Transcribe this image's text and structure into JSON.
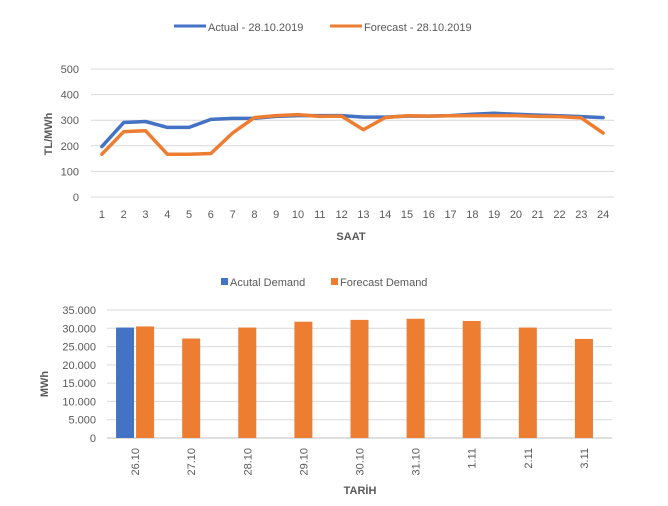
{
  "chart_data": [
    {
      "type": "line",
      "title": "",
      "xlabel": "SAAT",
      "ylabel": "TL/MWh",
      "ylim": [
        0,
        500
      ],
      "yticks": [
        "0",
        "100",
        "200",
        "300",
        "400",
        "500"
      ],
      "categories": [
        "1",
        "2",
        "3",
        "4",
        "5",
        "6",
        "7",
        "8",
        "9",
        "10",
        "11",
        "12",
        "13",
        "14",
        "15",
        "16",
        "17",
        "18",
        "19",
        "20",
        "21",
        "22",
        "23",
        "24"
      ],
      "grid": true,
      "legend": "top-center",
      "series": [
        {
          "name": "Actual - 28.10.2019",
          "color": "#4472C4",
          "values": [
            197,
            291,
            295,
            272,
            272,
            303,
            307,
            308,
            315,
            318,
            318,
            318,
            312,
            312,
            316,
            316,
            318,
            323,
            327,
            323,
            320,
            317,
            314,
            310
          ]
        },
        {
          "name": "Forecast - 28.10.2019",
          "color": "#ED7D31",
          "values": [
            167,
            255,
            259,
            167,
            167,
            170,
            250,
            310,
            318,
            322,
            315,
            316,
            263,
            310,
            317,
            316,
            317,
            318,
            318,
            318,
            315,
            314,
            309,
            250
          ]
        }
      ]
    },
    {
      "type": "bar",
      "title": "",
      "xlabel": "TARİH",
      "ylabel": "MWh",
      "ylim": [
        0,
        35000
      ],
      "yticks": [
        "0",
        "5.000",
        "10.000",
        "15.000",
        "20.000",
        "25.000",
        "30.000",
        "35.000"
      ],
      "categories": [
        "26.10",
        "27.10",
        "28.10",
        "29.10",
        "30.10",
        "31.10",
        "1.11",
        "2.11",
        "3.11"
      ],
      "grid": true,
      "legend": "top-center",
      "series": [
        {
          "name": "Acutal Demand",
          "color": "#4472C4",
          "values": [
            30200,
            null,
            null,
            null,
            null,
            null,
            null,
            null,
            null
          ]
        },
        {
          "name": "Forecast Demand",
          "color": "#ED7D31",
          "values": [
            30500,
            27200,
            30200,
            31800,
            32300,
            32600,
            32000,
            30200,
            27100
          ]
        }
      ]
    }
  ]
}
